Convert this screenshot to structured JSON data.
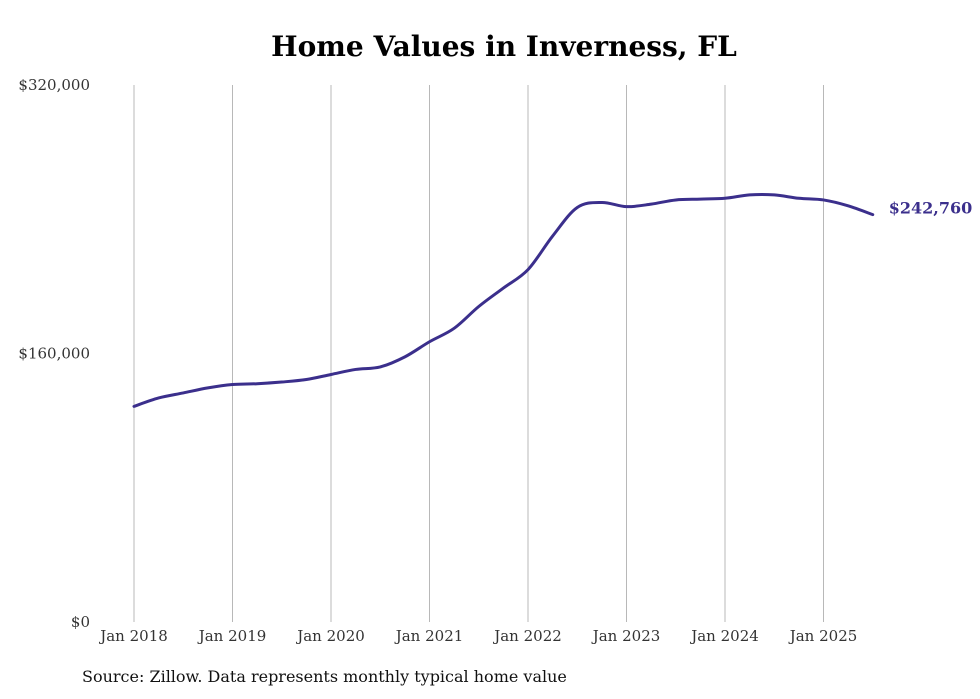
{
  "chart_data": {
    "type": "line",
    "title": "Home Values in Inverness, FL",
    "xlabel": "",
    "ylabel": "",
    "source": "Source: Zillow. Data represents monthly typical home value",
    "ylim": [
      0,
      320000
    ],
    "y_ticks": [
      {
        "value": 0,
        "label": "$0"
      },
      {
        "value": 160000,
        "label": "$160,000"
      },
      {
        "value": 320000,
        "label": "$320,000"
      }
    ],
    "x_ticks": [
      {
        "value": "2018-01",
        "label": "Jan 2018"
      },
      {
        "value": "2019-01",
        "label": "Jan 2019"
      },
      {
        "value": "2020-01",
        "label": "Jan 2020"
      },
      {
        "value": "2021-01",
        "label": "Jan 2021"
      },
      {
        "value": "2022-01",
        "label": "Jan 2022"
      },
      {
        "value": "2023-01",
        "label": "Jan 2023"
      },
      {
        "value": "2024-01",
        "label": "Jan 2024"
      },
      {
        "value": "2025-01",
        "label": "Jan 2025"
      }
    ],
    "grid": {
      "vertical": true,
      "horizontal": false
    },
    "series": [
      {
        "color": "#3b2f8c",
        "end_label": "$242,760",
        "points": [
          {
            "x": "2018-01",
            "y": 128500
          },
          {
            "x": "2018-04",
            "y": 133500
          },
          {
            "x": "2018-07",
            "y": 136500
          },
          {
            "x": "2018-10",
            "y": 139500
          },
          {
            "x": "2019-01",
            "y": 141500
          },
          {
            "x": "2019-04",
            "y": 142000
          },
          {
            "x": "2019-07",
            "y": 143000
          },
          {
            "x": "2019-10",
            "y": 144500
          },
          {
            "x": "2020-01",
            "y": 147500
          },
          {
            "x": "2020-04",
            "y": 150500
          },
          {
            "x": "2020-07",
            "y": 152000
          },
          {
            "x": "2020-10",
            "y": 158000
          },
          {
            "x": "2021-01",
            "y": 167000
          },
          {
            "x": "2021-04",
            "y": 175000
          },
          {
            "x": "2021-07",
            "y": 188000
          },
          {
            "x": "2021-10",
            "y": 199000
          },
          {
            "x": "2022-01",
            "y": 210000
          },
          {
            "x": "2022-04",
            "y": 230000
          },
          {
            "x": "2022-07",
            "y": 247000
          },
          {
            "x": "2022-10",
            "y": 250000
          },
          {
            "x": "2023-01",
            "y": 247500
          },
          {
            "x": "2023-04",
            "y": 249000
          },
          {
            "x": "2023-07",
            "y": 251500
          },
          {
            "x": "2023-10",
            "y": 252000
          },
          {
            "x": "2024-01",
            "y": 252500
          },
          {
            "x": "2024-04",
            "y": 254500
          },
          {
            "x": "2024-07",
            "y": 254500
          },
          {
            "x": "2024-10",
            "y": 252500
          },
          {
            "x": "2025-01",
            "y": 251500
          },
          {
            "x": "2025-04",
            "y": 248000
          },
          {
            "x": "2025-07",
            "y": 242760
          }
        ]
      }
    ]
  }
}
